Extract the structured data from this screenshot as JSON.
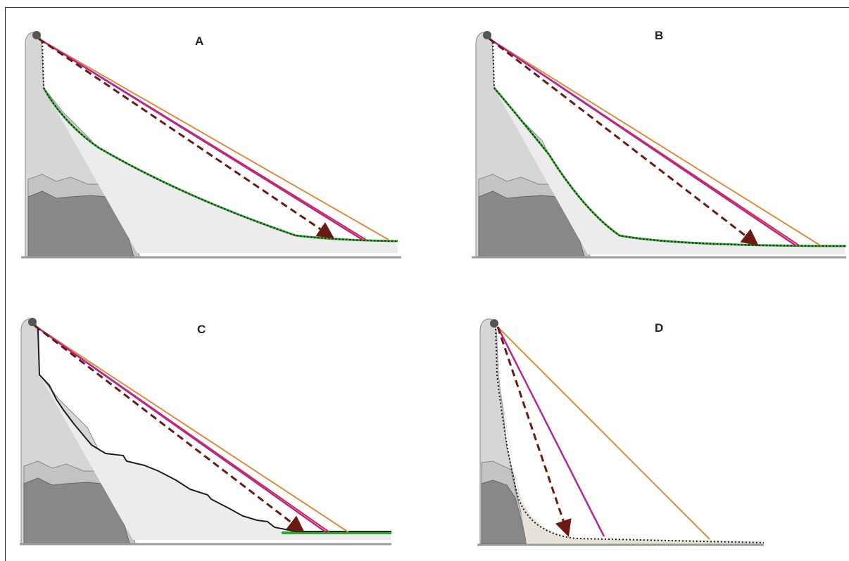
{
  "panels": [
    {
      "id": "A",
      "label": "A"
    },
    {
      "id": "B",
      "label": "B"
    },
    {
      "id": "C",
      "label": "C"
    },
    {
      "id": "D",
      "label": "D"
    }
  ],
  "colors": {
    "rock_light": "#d6d6d6",
    "rock_mid": "#b9b9b9",
    "rock_dark": "#888888",
    "deposit": "#ececec",
    "deposit_d": "#e7e2d9",
    "orange_line": "#e08a3c",
    "magenta_line": "#b2289c",
    "red_line": "#d8283c",
    "dashed_line": "#6b1a12",
    "deposit_outline": "#1e1e1e",
    "green_profile": "#2ea52e",
    "ground": "#9a9a9a"
  }
}
